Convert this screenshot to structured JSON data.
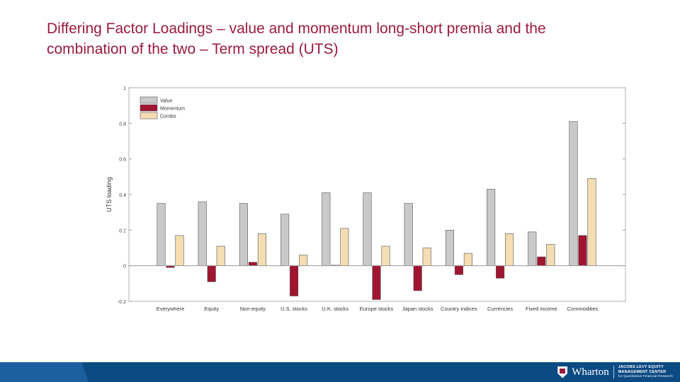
{
  "slide": {
    "title_line1": "Differing Factor Loadings – value and momentum long-short premia and the",
    "title_line2": "combination of the two – Term spread (UTS)"
  },
  "colors": {
    "title": "#9b1b3f",
    "value": "#c9c9c9",
    "momentum": "#a01530",
    "combo": "#f4dcb3",
    "footer": "#0c4a84"
  },
  "chart_data": {
    "type": "bar",
    "ylabel": "UTS loading",
    "xlabel": "",
    "ylim": [
      -0.2,
      1
    ],
    "yticks": [
      -0.2,
      0,
      0.2,
      0.4,
      0.6,
      0.8,
      1
    ],
    "ytick_labels": [
      "-0.2",
      "0",
      "0.2",
      "0.4",
      "0.6",
      "0.8",
      "1"
    ],
    "grid": false,
    "legend_position": "top-left",
    "categories": [
      "Everywhere",
      "Equity",
      "Non-equity",
      "U.S. stocks",
      "U.K. stocks",
      "Europe stocks",
      "Japan stocks",
      "Country indices",
      "Currencies",
      "Fixed income",
      "Commodities"
    ],
    "series": [
      {
        "name": "Value",
        "color": "#c9c9c9",
        "values": [
          0.35,
          0.36,
          0.35,
          0.29,
          0.41,
          0.41,
          0.35,
          0.2,
          0.43,
          0.19,
          0.81
        ]
      },
      {
        "name": "Momentum",
        "color": "#a01530",
        "values": [
          -0.01,
          -0.09,
          0.02,
          -0.17,
          0.0,
          -0.19,
          -0.14,
          -0.05,
          -0.07,
          0.05,
          0.17
        ]
      },
      {
        "name": "Combo",
        "color": "#f4dcb3",
        "values": [
          0.17,
          0.11,
          0.18,
          0.06,
          0.21,
          0.11,
          0.1,
          0.07,
          0.18,
          0.12,
          0.49
        ]
      }
    ]
  },
  "footer": {
    "brand": "Wharton",
    "center_line1": "JACOBS LEVY EQUITY",
    "center_line2": "MANAGEMENT CENTER",
    "center_line3": "for Quantitative Financial Research"
  }
}
